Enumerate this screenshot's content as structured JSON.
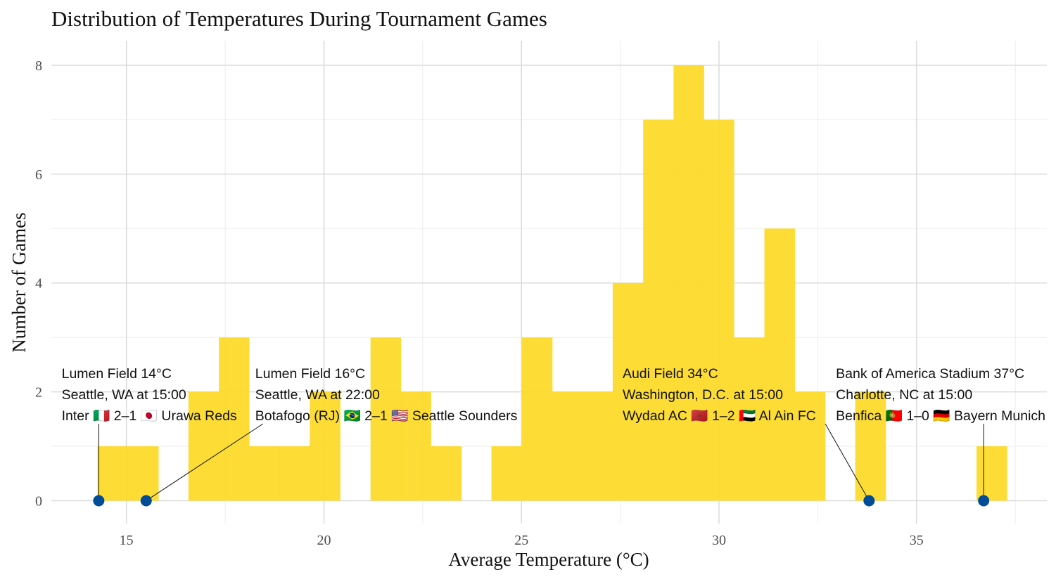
{
  "chart_data": {
    "type": "bar",
    "title": "Distribution of Temperatures During Tournament Games",
    "xlabel": "Average Temperature (°C)",
    "ylabel": "Number of Games",
    "xlim": [
      13.1,
      38.3
    ],
    "ylim": [
      -0.42,
      8.45
    ],
    "x_ticks": [
      15,
      20,
      25,
      30,
      35
    ],
    "y_ticks": [
      0,
      2,
      4,
      6,
      8
    ],
    "x_minor_ticks": [
      17.5,
      22.5,
      27.5,
      32.5,
      37.5
    ],
    "y_minor_ticks": [
      1,
      3,
      5,
      7
    ],
    "bin_width": 0.767,
    "bins": [
      {
        "start": 14.27,
        "count": 1
      },
      {
        "start": 15.04,
        "count": 1
      },
      {
        "start": 15.81,
        "count": 0
      },
      {
        "start": 16.57,
        "count": 2
      },
      {
        "start": 17.34,
        "count": 3
      },
      {
        "start": 18.11,
        "count": 1
      },
      {
        "start": 18.87,
        "count": 1
      },
      {
        "start": 19.64,
        "count": 2
      },
      {
        "start": 20.41,
        "count": 0
      },
      {
        "start": 21.18,
        "count": 3
      },
      {
        "start": 21.94,
        "count": 2
      },
      {
        "start": 22.71,
        "count": 1
      },
      {
        "start": 23.48,
        "count": 0
      },
      {
        "start": 24.24,
        "count": 1
      },
      {
        "start": 25.01,
        "count": 3
      },
      {
        "start": 25.78,
        "count": 2
      },
      {
        "start": 26.55,
        "count": 2
      },
      {
        "start": 27.31,
        "count": 4
      },
      {
        "start": 28.08,
        "count": 7
      },
      {
        "start": 28.85,
        "count": 8
      },
      {
        "start": 29.61,
        "count": 7
      },
      {
        "start": 30.38,
        "count": 3
      },
      {
        "start": 31.15,
        "count": 5
      },
      {
        "start": 31.92,
        "count": 2
      },
      {
        "start": 32.68,
        "count": 0
      },
      {
        "start": 33.45,
        "count": 2
      },
      {
        "start": 34.22,
        "count": 0
      },
      {
        "start": 34.98,
        "count": 0
      },
      {
        "start": 35.75,
        "count": 0
      },
      {
        "start": 36.52,
        "count": 1
      }
    ],
    "highlights": [
      {
        "x": 14.3,
        "y": 0,
        "label_x": 13.2,
        "label_top_y": 2.38,
        "lines": [
          "Lumen Field 14°C",
          "Seattle, WA at 15:00",
          "Inter 🇮🇹 2–1 🇯🇵 Urawa Reds"
        ]
      },
      {
        "x": 15.5,
        "y": 0,
        "label_x": 18.1,
        "label_top_y": 2.38,
        "lines": [
          "Lumen Field 16°C",
          "Seattle, WA at 22:00",
          "Botafogo (RJ) 🇧🇷 2–1 🇺🇸 Seattle Sounders"
        ]
      },
      {
        "x": 33.8,
        "y": 0,
        "label_x": 27.4,
        "label_top_y": 2.38,
        "lines": [
          "Audi Field 34°C",
          "Washington, D.C. at 15:00",
          "Wydad AC 🇲🇦 1–2 🇦🇪 Al Ain FC"
        ]
      },
      {
        "x": 36.7,
        "y": 0,
        "label_x": 32.8,
        "label_top_y": 2.38,
        "lines": [
          "Bank of America Stadium 37°C",
          "Charlotte, NC at 15:00",
          "Benfica 🇵🇹 1–0 🇩🇪 Bayern Munich"
        ]
      }
    ],
    "bar_color": "#FDDA24",
    "marker_color": "#004C97",
    "grid": true
  }
}
